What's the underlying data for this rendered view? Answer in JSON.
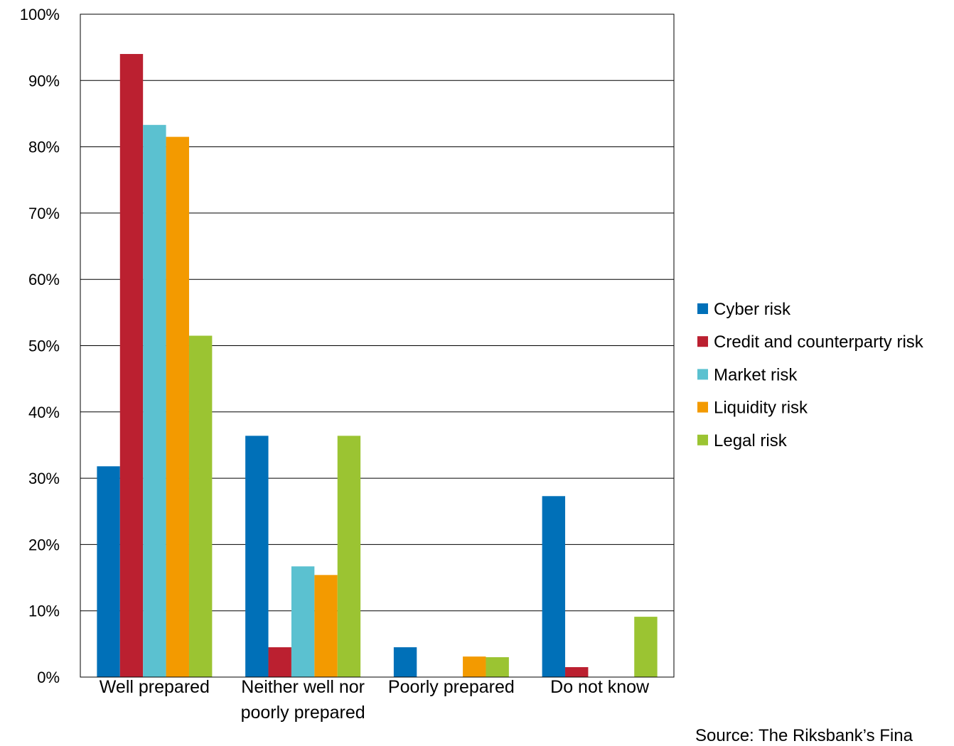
{
  "chart_data": {
    "type": "bar",
    "title": "",
    "xlabel": "",
    "ylabel": "",
    "ylim": [
      0,
      100
    ],
    "y_ticks": [
      "0%",
      "10%",
      "20%",
      "30%",
      "40%",
      "50%",
      "60%",
      "70%",
      "80%",
      "90%",
      "100%"
    ],
    "categories": [
      [
        "Well prepared"
      ],
      [
        "Neither well nor",
        "poorly prepared"
      ],
      [
        "Poorly prepared"
      ],
      [
        "Do not know"
      ]
    ],
    "series": [
      {
        "name": "Cyber risk",
        "color": "#0070b8",
        "values": [
          31.8,
          36.4,
          4.5,
          27.3
        ]
      },
      {
        "name": "Credit and counterparty risk",
        "color": "#bb2030",
        "values": [
          94.0,
          4.5,
          0,
          1.5
        ]
      },
      {
        "name": "Market risk",
        "color": "#5bc1d0",
        "values": [
          83.3,
          16.7,
          0,
          0
        ]
      },
      {
        "name": "Liquidity risk",
        "color": "#f39a00",
        "values": [
          81.5,
          15.4,
          3.1,
          0
        ]
      },
      {
        "name": "Legal risk",
        "color": "#9bc432",
        "values": [
          51.5,
          36.4,
          3.0,
          9.1
        ]
      }
    ],
    "grid": true,
    "legend_position": "right"
  },
  "source": "Source: The Riksbank’s Fina"
}
